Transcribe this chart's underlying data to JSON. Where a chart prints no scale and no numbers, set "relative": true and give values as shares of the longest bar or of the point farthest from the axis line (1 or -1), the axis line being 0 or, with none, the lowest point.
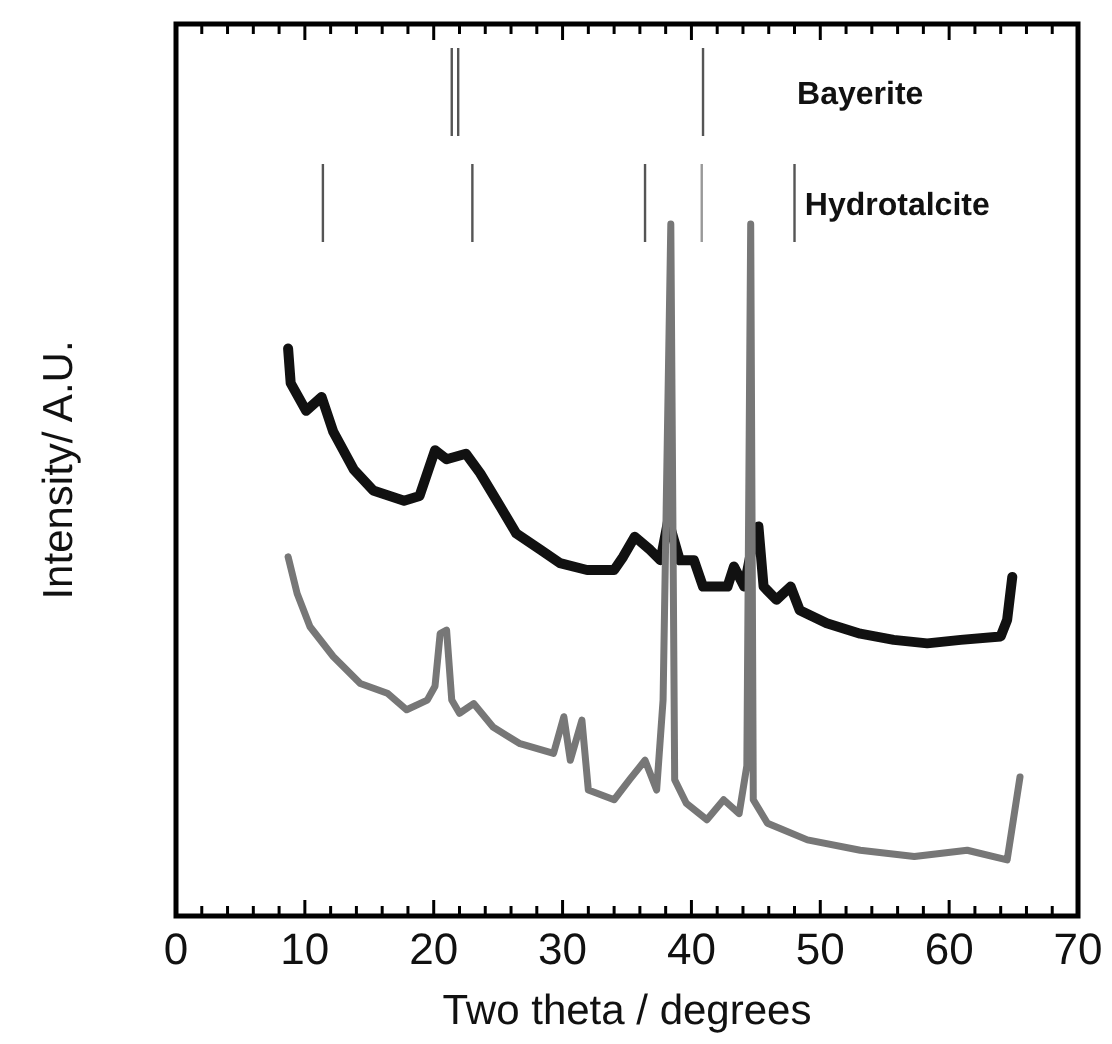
{
  "chart_data": {
    "type": "line",
    "xlabel": "Two theta / degrees",
    "ylabel": "Intensity/ A.U.",
    "relative": true,
    "grid": false,
    "marker": "none",
    "line_style": "solid",
    "annotations": [
      "Bayerite",
      "Hydrotalcite"
    ],
    "xlim": [
      0,
      70
    ],
    "xticks": [
      0,
      {
        "value": 2,
        "label": null
      },
      {
        "value": 4,
        "label": null
      },
      {
        "value": 6,
        "label": null
      },
      {
        "value": 8,
        "label": null
      },
      10,
      {
        "value": 12,
        "label": null
      },
      {
        "value": 14,
        "label": null
      },
      {
        "value": 16,
        "label": null
      },
      {
        "value": 18,
        "label": null
      },
      20,
      {
        "value": 22,
        "label": null
      },
      {
        "value": 24,
        "label": null
      },
      {
        "value": 26,
        "label": null
      },
      {
        "value": 28,
        "label": null
      },
      30,
      {
        "value": 32,
        "label": null
      },
      {
        "value": 34,
        "label": null
      },
      {
        "value": 36,
        "label": null
      },
      {
        "value": 38,
        "label": null
      },
      40,
      {
        "value": 42,
        "label": null
      },
      {
        "value": 44,
        "label": null
      },
      {
        "value": 46,
        "label": null
      },
      {
        "value": 48,
        "label": null
      },
      50,
      {
        "value": 52,
        "label": null
      },
      {
        "value": 54,
        "label": null
      },
      {
        "value": 56,
        "label": null
      },
      {
        "value": 58,
        "label": null
      },
      60,
      {
        "value": 62,
        "label": null
      },
      {
        "value": 64,
        "label": null
      },
      {
        "value": 66,
        "label": null
      },
      {
        "value": 68,
        "label": null
      },
      70
    ],
    "series": [
      {
        "color": "#111111",
        "x": [
          8.7,
          8.9,
          10.1,
          11.3,
          12.2,
          13.8,
          15.3,
          17.7,
          18.9,
          20.1,
          21.0,
          22.5,
          23.6,
          24.9,
          26.4,
          28.3,
          29.8,
          31.9,
          34.0,
          34.7,
          35.6,
          36.8,
          37.6,
          38.2,
          39.1,
          40.2,
          40.9,
          42.8,
          43.3,
          44.1,
          44.6,
          45.2,
          45.6,
          46.6,
          47.7,
          48.4,
          50.5,
          53.1,
          55.7,
          58.3,
          60.9,
          64.0,
          64.5,
          64.9
        ],
        "values": [
          0.82,
          0.77,
          0.73,
          0.75,
          0.7,
          0.645,
          0.615,
          0.6,
          0.607,
          0.673,
          0.66,
          0.668,
          0.64,
          0.6,
          0.553,
          0.529,
          0.51,
          0.5,
          0.5,
          0.519,
          0.548,
          0.529,
          0.514,
          0.572,
          0.514,
          0.514,
          0.476,
          0.476,
          0.505,
          0.476,
          0.524,
          0.563,
          0.476,
          0.457,
          0.476,
          0.442,
          0.423,
          0.408,
          0.399,
          0.394,
          0.399,
          0.404,
          0.428,
          0.49
        ]
      },
      {
        "color": "#777777",
        "x": [
          8.7,
          9.4,
          10.4,
          12.2,
          14.3,
          16.4,
          17.9,
          19.5,
          20.1,
          20.5,
          21.0,
          21.4,
          22.0,
          23.1,
          24.6,
          26.7,
          29.3,
          30.1,
          30.6,
          31.5,
          32.0,
          34.0,
          35.2,
          36.4,
          37.3,
          37.8,
          38.4,
          38.7,
          39.6,
          41.2,
          42.5,
          43.7,
          44.3,
          44.6,
          44.8,
          45.9,
          49.0,
          53.1,
          57.3,
          61.4,
          64.5,
          65.5
        ],
        "values": [
          0.519,
          0.466,
          0.418,
          0.375,
          0.336,
          0.322,
          0.298,
          0.312,
          0.332,
          0.408,
          0.413,
          0.312,
          0.293,
          0.307,
          0.273,
          0.249,
          0.235,
          0.288,
          0.225,
          0.283,
          0.182,
          0.168,
          0.197,
          0.225,
          0.182,
          0.312,
          1.0,
          0.197,
          0.163,
          0.139,
          0.168,
          0.148,
          0.217,
          1.0,
          0.168,
          0.134,
          0.11,
          0.095,
          0.086,
          0.095,
          0.081,
          0.201
        ]
      }
    ]
  }
}
